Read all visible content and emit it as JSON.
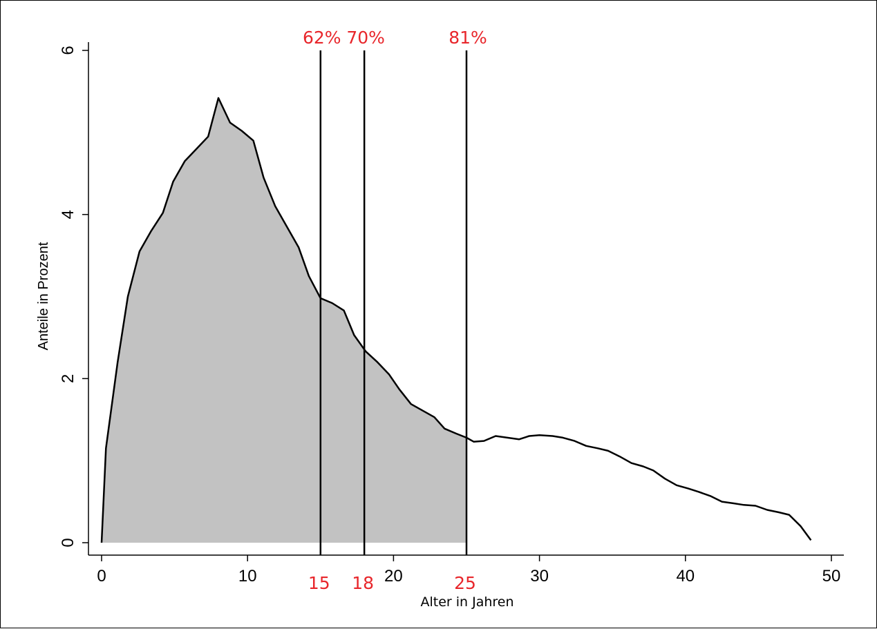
{
  "chart_data": {
    "type": "area",
    "xlabel": "Alter in Jahren",
    "ylabel": "Anteile in Prozent",
    "xlim": [
      0,
      50
    ],
    "ylim": [
      0,
      6
    ],
    "x_ticks": [
      "0",
      "10",
      "20",
      "30",
      "40",
      "50"
    ],
    "y_ticks": [
      "0",
      "2",
      "4",
      "6"
    ],
    "grid": false,
    "shaded_until_x": 25,
    "colors": {
      "fill": "#c2c2c2",
      "line": "#000000",
      "highlight": "#e8262b"
    },
    "series": [
      {
        "x": [
          0,
          0.3,
          1.1,
          1.8,
          2.6,
          3.4,
          4.2,
          4.9,
          5.7,
          6.5,
          7.3,
          8.0,
          8.8,
          9.6,
          10.4,
          11.1,
          11.9,
          12.7,
          13.5,
          14.2,
          15.0,
          15.8,
          16.6,
          17.3,
          18.1,
          18.9,
          19.7,
          20.4,
          21.2,
          22.0,
          22.8,
          23.5,
          24.3,
          25.0,
          25.5,
          26.2,
          27.0,
          27.8,
          28.6,
          29.3,
          30.0,
          30.9,
          31.6,
          32.4,
          33.2,
          34.0,
          34.7,
          35.5,
          36.3,
          37.1,
          37.8,
          38.6,
          39.4,
          40.2,
          40.9,
          41.7,
          42.5,
          43.3,
          44.0,
          44.8,
          45.6,
          46.4,
          47.1,
          47.9,
          48.6
        ],
        "values": [
          0,
          1.15,
          2.2,
          3.0,
          3.55,
          3.8,
          4.02,
          4.4,
          4.65,
          4.8,
          4.95,
          5.42,
          5.12,
          5.02,
          4.9,
          4.45,
          4.1,
          3.85,
          3.6,
          3.25,
          2.98,
          2.92,
          2.83,
          2.53,
          2.33,
          2.2,
          2.05,
          1.87,
          1.69,
          1.61,
          1.53,
          1.39,
          1.33,
          1.28,
          1.23,
          1.24,
          1.3,
          1.28,
          1.26,
          1.3,
          1.31,
          1.3,
          1.28,
          1.24,
          1.18,
          1.15,
          1.12,
          1.05,
          0.97,
          0.93,
          0.88,
          0.78,
          0.7,
          0.66,
          0.62,
          0.57,
          0.5,
          0.48,
          0.46,
          0.45,
          0.4,
          0.37,
          0.34,
          0.2,
          0.03
        ]
      }
    ],
    "markers": [
      {
        "x": 15,
        "x_label": "15",
        "top_label": "62%"
      },
      {
        "x": 18,
        "x_label": "18",
        "top_label": "70%"
      },
      {
        "x": 25,
        "x_label": "25",
        "top_label": "81%"
      }
    ]
  }
}
